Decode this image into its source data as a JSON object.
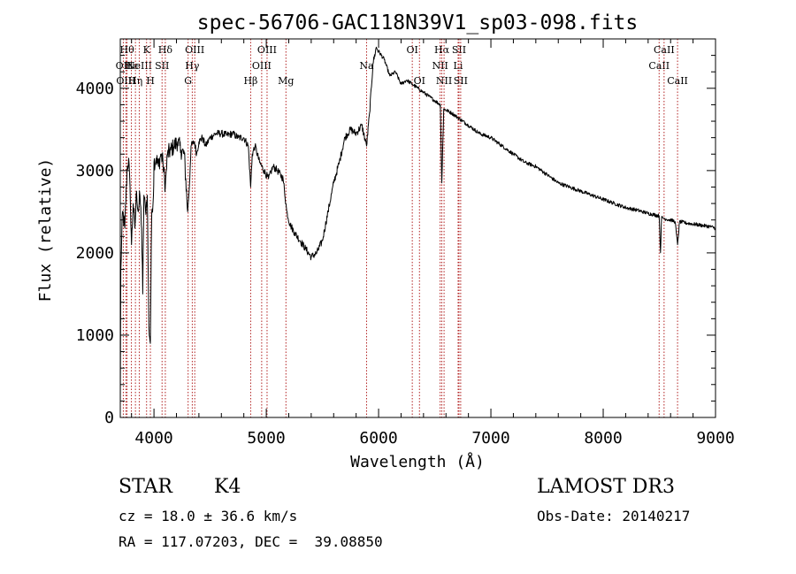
{
  "chart_data": {
    "type": "line",
    "title": "spec-56706-GAC118N39V1_sp03-098.fits",
    "xlabel": "Wavelength (Å)",
    "ylabel": "Flux (relative)",
    "xlim": [
      3700,
      9000
    ],
    "ylim": [
      0,
      4600
    ],
    "xticks": [
      4000,
      5000,
      6000,
      7000,
      8000,
      9000
    ],
    "xtick_labels": [
      "4000",
      "5000",
      "6000",
      "7000",
      "8000",
      "9000"
    ],
    "yticks": [
      0,
      1000,
      2000,
      3000,
      4000
    ],
    "ytick_labels": [
      "0",
      "1000",
      "2000",
      "3000",
      "4000"
    ],
    "grid": false,
    "series": [
      {
        "name": "spectrum",
        "points": [
          [
            3700,
            150
          ],
          [
            3705,
            1800
          ],
          [
            3720,
            2500
          ],
          [
            3740,
            2300
          ],
          [
            3760,
            3000
          ],
          [
            3775,
            3150
          ],
          [
            3790,
            2600
          ],
          [
            3800,
            2100
          ],
          [
            3815,
            2600
          ],
          [
            3830,
            2300
          ],
          [
            3845,
            2750
          ],
          [
            3860,
            2500
          ],
          [
            3875,
            2700
          ],
          [
            3890,
            2300
          ],
          [
            3900,
            1500
          ],
          [
            3910,
            2700
          ],
          [
            3925,
            2500
          ],
          [
            3940,
            2700
          ],
          [
            3955,
            1100
          ],
          [
            3968,
            900
          ],
          [
            3980,
            2500
          ],
          [
            3995,
            2700
          ],
          [
            4000,
            3100
          ],
          [
            4020,
            3150
          ],
          [
            4040,
            3050
          ],
          [
            4060,
            3200
          ],
          [
            4080,
            3100
          ],
          [
            4101,
            2800
          ],
          [
            4120,
            3200
          ],
          [
            4150,
            3250
          ],
          [
            4180,
            3300
          ],
          [
            4210,
            3350
          ],
          [
            4240,
            3250
          ],
          [
            4270,
            3200
          ],
          [
            4300,
            2500
          ],
          [
            4315,
            2800
          ],
          [
            4330,
            3300
          ],
          [
            4360,
            3350
          ],
          [
            4380,
            3200
          ],
          [
            4400,
            3350
          ],
          [
            4430,
            3400
          ],
          [
            4460,
            3300
          ],
          [
            4500,
            3400
          ],
          [
            4550,
            3450
          ],
          [
            4600,
            3450
          ],
          [
            4650,
            3430
          ],
          [
            4700,
            3450
          ],
          [
            4750,
            3400
          ],
          [
            4800,
            3400
          ],
          [
            4840,
            3300
          ],
          [
            4861,
            2800
          ],
          [
            4875,
            3200
          ],
          [
            4900,
            3300
          ],
          [
            4940,
            3100
          ],
          [
            4980,
            3000
          ],
          [
            5020,
            2900
          ],
          [
            5060,
            3050
          ],
          [
            5100,
            3000
          ],
          [
            5150,
            2900
          ],
          [
            5183,
            2500
          ],
          [
            5210,
            2350
          ],
          [
            5250,
            2250
          ],
          [
            5300,
            2150
          ],
          [
            5350,
            2050
          ],
          [
            5400,
            1950
          ],
          [
            5450,
            2000
          ],
          [
            5500,
            2150
          ],
          [
            5550,
            2500
          ],
          [
            5600,
            2850
          ],
          [
            5650,
            3100
          ],
          [
            5700,
            3400
          ],
          [
            5750,
            3500
          ],
          [
            5800,
            3450
          ],
          [
            5850,
            3550
          ],
          [
            5893,
            3300
          ],
          [
            5920,
            3700
          ],
          [
            5950,
            4300
          ],
          [
            5980,
            4500
          ],
          [
            6000,
            4450
          ],
          [
            6050,
            4350
          ],
          [
            6100,
            4150
          ],
          [
            6150,
            4200
          ],
          [
            6200,
            4050
          ],
          [
            6250,
            4100
          ],
          [
            6300,
            4050
          ],
          [
            6350,
            4000
          ],
          [
            6400,
            3950
          ],
          [
            6450,
            3900
          ],
          [
            6500,
            3850
          ],
          [
            6550,
            3800
          ],
          [
            6563,
            2850
          ],
          [
            6580,
            3750
          ],
          [
            6650,
            3700
          ],
          [
            6700,
            3650
          ],
          [
            6800,
            3550
          ],
          [
            6900,
            3450
          ],
          [
            7000,
            3400
          ],
          [
            7100,
            3300
          ],
          [
            7200,
            3200
          ],
          [
            7300,
            3100
          ],
          [
            7400,
            3050
          ],
          [
            7500,
            2950
          ],
          [
            7600,
            2850
          ],
          [
            7700,
            2800
          ],
          [
            7800,
            2750
          ],
          [
            7900,
            2700
          ],
          [
            8000,
            2650
          ],
          [
            8100,
            2600
          ],
          [
            8200,
            2550
          ],
          [
            8300,
            2520
          ],
          [
            8400,
            2480
          ],
          [
            8498,
            2450
          ],
          [
            8510,
            2000
          ],
          [
            8520,
            2430
          ],
          [
            8542,
            2420
          ],
          [
            8560,
            2410
          ],
          [
            8600,
            2400
          ],
          [
            8640,
            2380
          ],
          [
            8662,
            2100
          ],
          [
            8680,
            2380
          ],
          [
            8750,
            2360
          ],
          [
            8850,
            2340
          ],
          [
            8950,
            2320
          ],
          [
            9000,
            2300
          ]
        ]
      }
    ],
    "lines": [
      {
        "wavelength": 3727,
        "labels": [
          "OII"
        ],
        "tier": 1
      },
      {
        "wavelength": 3750,
        "labels": [
          "OIII"
        ],
        "tier": 2
      },
      {
        "wavelength": 3760,
        "labels": [
          "Hθ"
        ],
        "tier": 0
      },
      {
        "wavelength": 3799,
        "labels": [
          "Hε"
        ],
        "tier": 1
      },
      {
        "wavelength": 3835,
        "labels": [
          "Hη"
        ],
        "tier": 2
      },
      {
        "wavelength": 3869,
        "labels": [
          "NeIII"
        ],
        "tier": 1
      },
      {
        "wavelength": 3934,
        "labels": [
          "K"
        ],
        "tier": 0
      },
      {
        "wavelength": 3968,
        "labels": [
          "H"
        ],
        "tier": 2
      },
      {
        "wavelength": 4072,
        "labels": [
          "SII"
        ],
        "tier": 1
      },
      {
        "wavelength": 4101,
        "labels": [
          "Hδ"
        ],
        "tier": 0
      },
      {
        "wavelength": 4304,
        "labels": [
          "G"
        ],
        "tier": 2
      },
      {
        "wavelength": 4341,
        "labels": [
          "Hγ"
        ],
        "tier": 1
      },
      {
        "wavelength": 4363,
        "labels": [
          "OIII"
        ],
        "tier": 0
      },
      {
        "wavelength": 4861,
        "labels": [
          "Hβ"
        ],
        "tier": 2
      },
      {
        "wavelength": 4959,
        "labels": [
          "OIII"
        ],
        "tier": 1
      },
      {
        "wavelength": 5007,
        "labels": [
          "OIII"
        ],
        "tier": 0
      },
      {
        "wavelength": 5175,
        "labels": [
          "Mg"
        ],
        "tier": 2
      },
      {
        "wavelength": 5893,
        "labels": [
          "Na"
        ],
        "tier": 1
      },
      {
        "wavelength": 6300,
        "labels": [
          "OI"
        ],
        "tier": 0
      },
      {
        "wavelength": 6364,
        "labels": [
          "OI"
        ],
        "tier": 2
      },
      {
        "wavelength": 6548,
        "labels": [
          "NII"
        ],
        "tier": 1
      },
      {
        "wavelength": 6563,
        "labels": [
          "Hα"
        ],
        "tier": 0
      },
      {
        "wavelength": 6583,
        "labels": [
          "NII"
        ],
        "tier": 2
      },
      {
        "wavelength": 6708,
        "labels": [
          "Li"
        ],
        "tier": 1
      },
      {
        "wavelength": 6716,
        "labels": [
          "SII"
        ],
        "tier": 0
      },
      {
        "wavelength": 6731,
        "labels": [
          "SII"
        ],
        "tier": 2
      },
      {
        "wavelength": 8498,
        "labels": [
          "CaII"
        ],
        "tier": 1
      },
      {
        "wavelength": 8542,
        "labels": [
          "CaII"
        ],
        "tier": 0
      },
      {
        "wavelength": 8662,
        "labels": [
          "CaII"
        ],
        "tier": 2
      }
    ]
  },
  "info": {
    "object_class": "STAR",
    "subclass": "K4",
    "survey": "LAMOST DR3",
    "redshift": "cz = 18.0 ± 36.6 km/s",
    "obs_date": "Obs-Date: 20140217",
    "coords": "RA = 117.07203, DEC =  39.08850"
  },
  "colors": {
    "spectrum": "#000000",
    "line_marker": "#b22222",
    "axis": "#000000",
    "background": "#ffffff"
  }
}
